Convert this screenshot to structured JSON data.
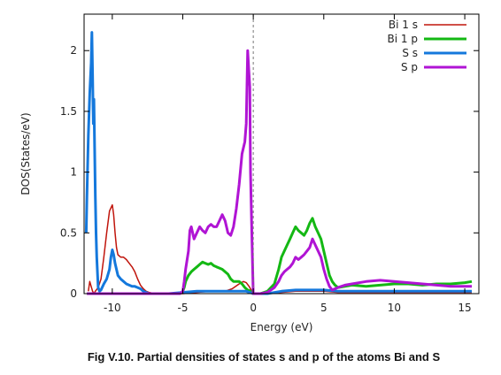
{
  "caption": "Fig V.10. Partial densities of states s and p of the atoms Bi and S",
  "chart_data": {
    "type": "line",
    "title": "",
    "xlabel": "Energy (eV)",
    "ylabel": "DOS(States/eV)",
    "xlim": [
      -12,
      16
    ],
    "ylim": [
      0,
      2.3
    ],
    "xticks": [
      -10,
      -5,
      0,
      5,
      10,
      15
    ],
    "yticks": [
      0,
      0.5,
      1,
      1.5,
      2
    ],
    "fermi_level": 0,
    "legend_position": "top-right",
    "grid": false,
    "series": [
      {
        "name": "Bi 1 s",
        "color": "#c0150c",
        "x": [
          -11.7,
          -11.6,
          -11.5,
          -11.4,
          -11.3,
          -11.2,
          -11.0,
          -10.8,
          -10.6,
          -10.4,
          -10.2,
          -10.0,
          -9.9,
          -9.8,
          -9.7,
          -9.6,
          -9.4,
          -9.2,
          -9.0,
          -8.8,
          -8.6,
          -8.4,
          -8.2,
          -8.0,
          -7.8,
          -7.6,
          -7.4,
          -7.0,
          -6.0,
          -5.0,
          -4.0,
          -3.0,
          -2.0,
          -1.5,
          -1.0,
          -0.7,
          -0.5,
          -0.3,
          -0.1,
          0.0,
          1.0,
          2.0,
          3.0,
          4.0,
          5.0,
          6.0,
          8.0,
          10.0,
          12.0,
          14.0,
          15.5
        ],
        "y": [
          0.02,
          0.1,
          0.06,
          0.02,
          0.0,
          0.02,
          0.05,
          0.12,
          0.3,
          0.5,
          0.68,
          0.73,
          0.65,
          0.5,
          0.38,
          0.32,
          0.3,
          0.3,
          0.28,
          0.25,
          0.22,
          0.18,
          0.12,
          0.07,
          0.04,
          0.02,
          0.01,
          0.0,
          0.0,
          0.0,
          0.01,
          0.02,
          0.02,
          0.04,
          0.08,
          0.1,
          0.09,
          0.06,
          0.02,
          0.0,
          0.0,
          0.01,
          0.02,
          0.02,
          0.02,
          0.01,
          0.01,
          0.01,
          0.01,
          0.01,
          0.01
        ]
      },
      {
        "name": "Bi 1 p",
        "color": "#14b814",
        "x": [
          -11.8,
          -10.0,
          -8.0,
          -6.0,
          -5.5,
          -5.2,
          -5.0,
          -4.9,
          -4.8,
          -4.6,
          -4.4,
          -4.2,
          -4.0,
          -3.8,
          -3.6,
          -3.4,
          -3.2,
          -3.0,
          -2.8,
          -2.6,
          -2.4,
          -2.2,
          -2.0,
          -1.8,
          -1.6,
          -1.4,
          -1.2,
          -1.0,
          -0.8,
          -0.6,
          -0.4,
          -0.2,
          -0.1,
          0.0,
          0.5,
          1.0,
          1.5,
          1.8,
          2.0,
          2.2,
          2.4,
          2.6,
          2.8,
          3.0,
          3.2,
          3.4,
          3.6,
          3.8,
          4.0,
          4.2,
          4.4,
          4.6,
          4.8,
          5.0,
          5.2,
          5.4,
          5.6,
          5.8,
          6.0,
          6.5,
          7.0,
          8.0,
          9.0,
          10.0,
          11.0,
          12.0,
          13.0,
          14.0,
          15.0,
          15.5
        ],
        "y": [
          0.0,
          0.0,
          0.0,
          0.0,
          0.0,
          0.0,
          0.02,
          0.05,
          0.1,
          0.15,
          0.18,
          0.2,
          0.22,
          0.24,
          0.26,
          0.25,
          0.24,
          0.25,
          0.23,
          0.22,
          0.21,
          0.2,
          0.18,
          0.16,
          0.12,
          0.1,
          0.1,
          0.1,
          0.08,
          0.05,
          0.03,
          0.02,
          0.01,
          0.0,
          0.0,
          0.02,
          0.08,
          0.2,
          0.3,
          0.35,
          0.4,
          0.45,
          0.5,
          0.55,
          0.52,
          0.5,
          0.48,
          0.52,
          0.58,
          0.62,
          0.55,
          0.5,
          0.45,
          0.35,
          0.25,
          0.15,
          0.1,
          0.07,
          0.05,
          0.06,
          0.07,
          0.06,
          0.07,
          0.08,
          0.08,
          0.07,
          0.08,
          0.08,
          0.09,
          0.1
        ]
      },
      {
        "name": "S s",
        "color": "#1478dc",
        "x": [
          -11.85,
          -11.8,
          -11.7,
          -11.6,
          -11.5,
          -11.45,
          -11.4,
          -11.35,
          -11.3,
          -11.25,
          -11.2,
          -11.15,
          -11.1,
          -11.0,
          -10.9,
          -10.8,
          -10.6,
          -10.4,
          -10.2,
          -10.1,
          -10.0,
          -9.9,
          -9.8,
          -9.6,
          -9.4,
          -9.2,
          -9.0,
          -8.8,
          -8.6,
          -8.4,
          -8.2,
          -8.0,
          -7.8,
          -7.6,
          -7.4,
          -7.0,
          -6.0,
          -5.0,
          -4.0,
          -3.0,
          -2.0,
          -1.0,
          -0.5,
          0.0,
          1.0,
          2.0,
          3.0,
          4.0,
          5.0,
          6.0,
          8.0,
          10.0,
          12.0,
          14.0,
          15.5
        ],
        "y": [
          0.5,
          0.8,
          1.3,
          1.65,
          1.9,
          2.15,
          1.8,
          1.4,
          1.6,
          1.2,
          0.8,
          0.5,
          0.3,
          0.05,
          0.02,
          0.03,
          0.08,
          0.12,
          0.2,
          0.3,
          0.36,
          0.32,
          0.25,
          0.15,
          0.12,
          0.1,
          0.08,
          0.07,
          0.06,
          0.06,
          0.05,
          0.04,
          0.02,
          0.01,
          0.0,
          0.0,
          0.0,
          0.01,
          0.02,
          0.02,
          0.02,
          0.02,
          0.02,
          0.0,
          0.0,
          0.02,
          0.03,
          0.03,
          0.03,
          0.02,
          0.02,
          0.02,
          0.02,
          0.02,
          0.02
        ]
      },
      {
        "name": "S p",
        "color": "#b014d4",
        "x": [
          -11.8,
          -10.0,
          -8.0,
          -6.0,
          -5.2,
          -5.0,
          -4.9,
          -4.8,
          -4.6,
          -4.5,
          -4.4,
          -4.2,
          -4.0,
          -3.8,
          -3.6,
          -3.4,
          -3.2,
          -3.0,
          -2.8,
          -2.6,
          -2.4,
          -2.2,
          -2.0,
          -1.8,
          -1.6,
          -1.4,
          -1.2,
          -1.0,
          -0.8,
          -0.7,
          -0.6,
          -0.5,
          -0.45,
          -0.4,
          -0.3,
          -0.25,
          -0.2,
          -0.1,
          0.0,
          0.5,
          1.0,
          1.5,
          1.8,
          2.0,
          2.2,
          2.4,
          2.6,
          2.8,
          3.0,
          3.2,
          3.4,
          3.6,
          3.8,
          4.0,
          4.2,
          4.4,
          4.6,
          4.8,
          5.0,
          5.2,
          5.4,
          5.6,
          5.8,
          6.0,
          6.5,
          7.0,
          8.0,
          9.0,
          10.0,
          11.0,
          12.0,
          13.0,
          14.0,
          15.0,
          15.5
        ],
        "y": [
          0.0,
          0.0,
          0.0,
          0.0,
          0.0,
          0.02,
          0.1,
          0.2,
          0.35,
          0.52,
          0.55,
          0.45,
          0.5,
          0.55,
          0.52,
          0.5,
          0.55,
          0.57,
          0.55,
          0.55,
          0.6,
          0.65,
          0.6,
          0.5,
          0.48,
          0.55,
          0.7,
          0.9,
          1.15,
          1.2,
          1.25,
          1.4,
          1.7,
          2.0,
          1.8,
          1.7,
          1.0,
          0.5,
          0.0,
          0.0,
          0.01,
          0.05,
          0.1,
          0.15,
          0.18,
          0.2,
          0.22,
          0.25,
          0.3,
          0.28,
          0.3,
          0.32,
          0.35,
          0.38,
          0.45,
          0.4,
          0.35,
          0.3,
          0.2,
          0.12,
          0.06,
          0.03,
          0.04,
          0.05,
          0.07,
          0.08,
          0.1,
          0.11,
          0.1,
          0.09,
          0.08,
          0.07,
          0.06,
          0.06,
          0.06
        ]
      }
    ]
  }
}
